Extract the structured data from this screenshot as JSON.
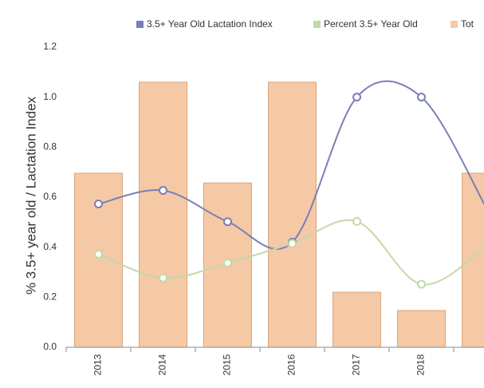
{
  "chart_data": {
    "type": "bar-line",
    "y_label": "% 3.5+ year old / Lactation Index",
    "categories": [
      "2013",
      "2014",
      "2015",
      "2016",
      "2017",
      "2018",
      null
    ],
    "series": [
      {
        "name": "3.5+ Year Old Lactation Index",
        "type": "line",
        "color": "#7a7fb8",
        "values": [
          0.573,
          0.627,
          0.502,
          0.42,
          1.0,
          1.0,
          0.56
        ]
      },
      {
        "name": "Percent 3.5+ Year Old",
        "type": "line",
        "color": "#c2d9a8",
        "values": [
          0.372,
          0.277,
          0.337,
          0.415,
          0.503,
          0.252,
          0.4
        ]
      },
      {
        "name": "Tot",
        "type": "bar",
        "color": "#f5c9a5",
        "values": [
          0.696,
          1.06,
          0.657,
          1.06,
          0.22,
          0.147,
          0.696
        ]
      }
    ],
    "ylim": [
      0,
      1.2
    ],
    "yticks": [
      {
        "value": 0,
        "label": "0.0"
      },
      0.2,
      0.4,
      0.6,
      0.8,
      {
        "value": 1,
        "label": "1.0"
      },
      1.2
    ]
  }
}
